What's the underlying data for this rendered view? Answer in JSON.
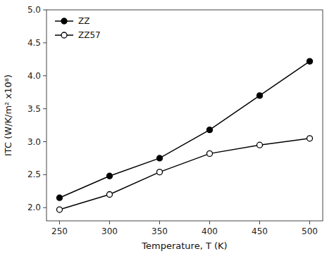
{
  "chart_data": {
    "type": "line",
    "x": [
      250,
      300,
      350,
      400,
      450,
      500
    ],
    "series": [
      {
        "name": "ZZ",
        "color": "#000000",
        "marker": "circle",
        "values": [
          2.15,
          2.48,
          2.75,
          3.18,
          3.7,
          4.22
        ]
      },
      {
        "name": "ZZ57",
        "color": "#000000",
        "marker": "open-circle",
        "values": [
          1.97,
          2.2,
          2.54,
          2.82,
          2.95,
          3.05
        ]
      }
    ],
    "xlabel": "Temperature, T (K)",
    "ylabel": "ITC (W/K/m² x10⁸)",
    "xlim": [
      237,
      513
    ],
    "ylim": [
      1.8,
      5.0
    ],
    "xticks": [
      250,
      300,
      350,
      400,
      450,
      500
    ],
    "yticks": [
      {
        "value": 2,
        "label": "2.0"
      },
      2.5,
      {
        "value": 3,
        "label": "3.0"
      },
      3.5,
      {
        "value": 4,
        "label": "4.0"
      },
      4.5,
      {
        "value": 5,
        "label": "5.0"
      }
    ],
    "legend": "upper left",
    "grid": false
  }
}
